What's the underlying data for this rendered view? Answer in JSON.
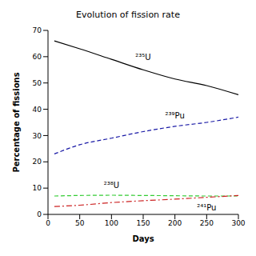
{
  "chart_data": {
    "type": "line",
    "title": "Evolution of fission rate",
    "x_label": "Days",
    "y_label": "Percentage of fissions",
    "x": [
      10,
      50,
      100,
      150,
      200,
      250,
      300
    ],
    "xlim": [
      0,
      300
    ],
    "xticks": [
      0,
      50,
      100,
      150,
      200,
      250,
      300
    ],
    "ylim": [
      0,
      70
    ],
    "yticks": [
      0,
      10,
      20,
      30,
      40,
      50,
      60,
      70
    ],
    "grid": false,
    "series": [
      {
        "name": "²³⁵U",
        "color": "#000000",
        "line_style": "solid",
        "values": [
          66,
          63,
          59,
          55,
          51.5,
          49,
          45.5
        ]
      },
      {
        "name": "²³⁹Pu",
        "color": "#1a1aa6",
        "line_style": "dashed",
        "values": [
          23,
          26.5,
          29,
          31.5,
          33.5,
          35,
          37
        ]
      },
      {
        "name": "²³⁸U",
        "color": "#33cc33",
        "line_style": "dashed",
        "values": [
          7,
          7.2,
          7.3,
          7.2,
          7.1,
          7,
          7
        ]
      },
      {
        "name": "²⁴¹Pu",
        "color": "#cc2222",
        "line_style": "dashdot",
        "values": [
          3,
          3.5,
          4.5,
          5.2,
          5.8,
          6.5,
          7.2
        ]
      }
    ]
  }
}
